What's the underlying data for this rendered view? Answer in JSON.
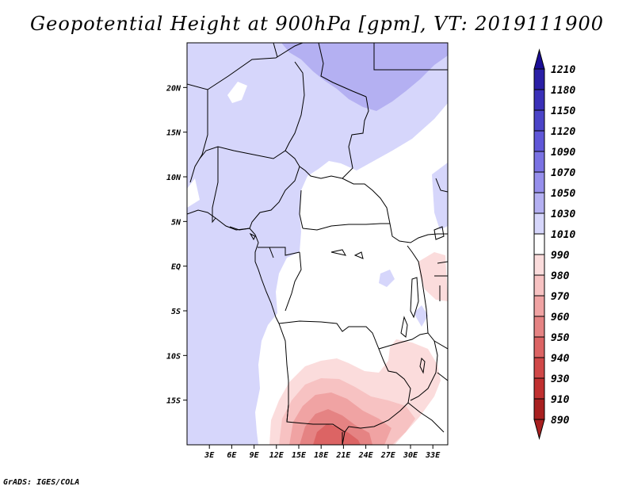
{
  "title": "Geopotential Height at 900hPa [gpm], VT: 2019111900",
  "footer": "GrADS: IGES/COLA",
  "map": {
    "lon_range": [
      0,
      35
    ],
    "lat_range": [
      -20,
      25
    ],
    "lat_ticks": [
      {
        "value": 20,
        "label": "20N"
      },
      {
        "value": 15,
        "label": "15N"
      },
      {
        "value": 10,
        "label": "10N"
      },
      {
        "value": 5,
        "label": "5N"
      },
      {
        "value": 0,
        "label": "EQ"
      },
      {
        "value": -5,
        "label": "5S"
      },
      {
        "value": -10,
        "label": "10S"
      },
      {
        "value": -15,
        "label": "15S"
      }
    ],
    "lon_ticks": [
      {
        "value": 3,
        "label": "3E"
      },
      {
        "value": 6,
        "label": "6E"
      },
      {
        "value": 9,
        "label": "9E"
      },
      {
        "value": 12,
        "label": "12E"
      },
      {
        "value": 15,
        "label": "15E"
      },
      {
        "value": 18,
        "label": "18E"
      },
      {
        "value": 21,
        "label": "21E"
      },
      {
        "value": 24,
        "label": "24E"
      },
      {
        "value": 27,
        "label": "27E"
      },
      {
        "value": 30,
        "label": "30E"
      },
      {
        "value": 33,
        "label": "33E"
      }
    ]
  },
  "colorbar": {
    "levels": [
      "1210",
      "1180",
      "1150",
      "1120",
      "1090",
      "1070",
      "1050",
      "1030",
      "1010",
      "990",
      "980",
      "970",
      "960",
      "950",
      "940",
      "930",
      "910",
      "890"
    ],
    "colors": [
      "#1a0d96",
      "#2a1fa6",
      "#3a30b8",
      "#4b44c8",
      "#6057d8",
      "#7a72e3",
      "#968fec",
      "#b4b0f2",
      "#d6d6fb",
      "#ffffff",
      "#fbdcdc",
      "#f7c2c2",
      "#f0a3a3",
      "#e58383",
      "#dc6464",
      "#d04848",
      "#c03030",
      "#a82020"
    ]
  }
}
